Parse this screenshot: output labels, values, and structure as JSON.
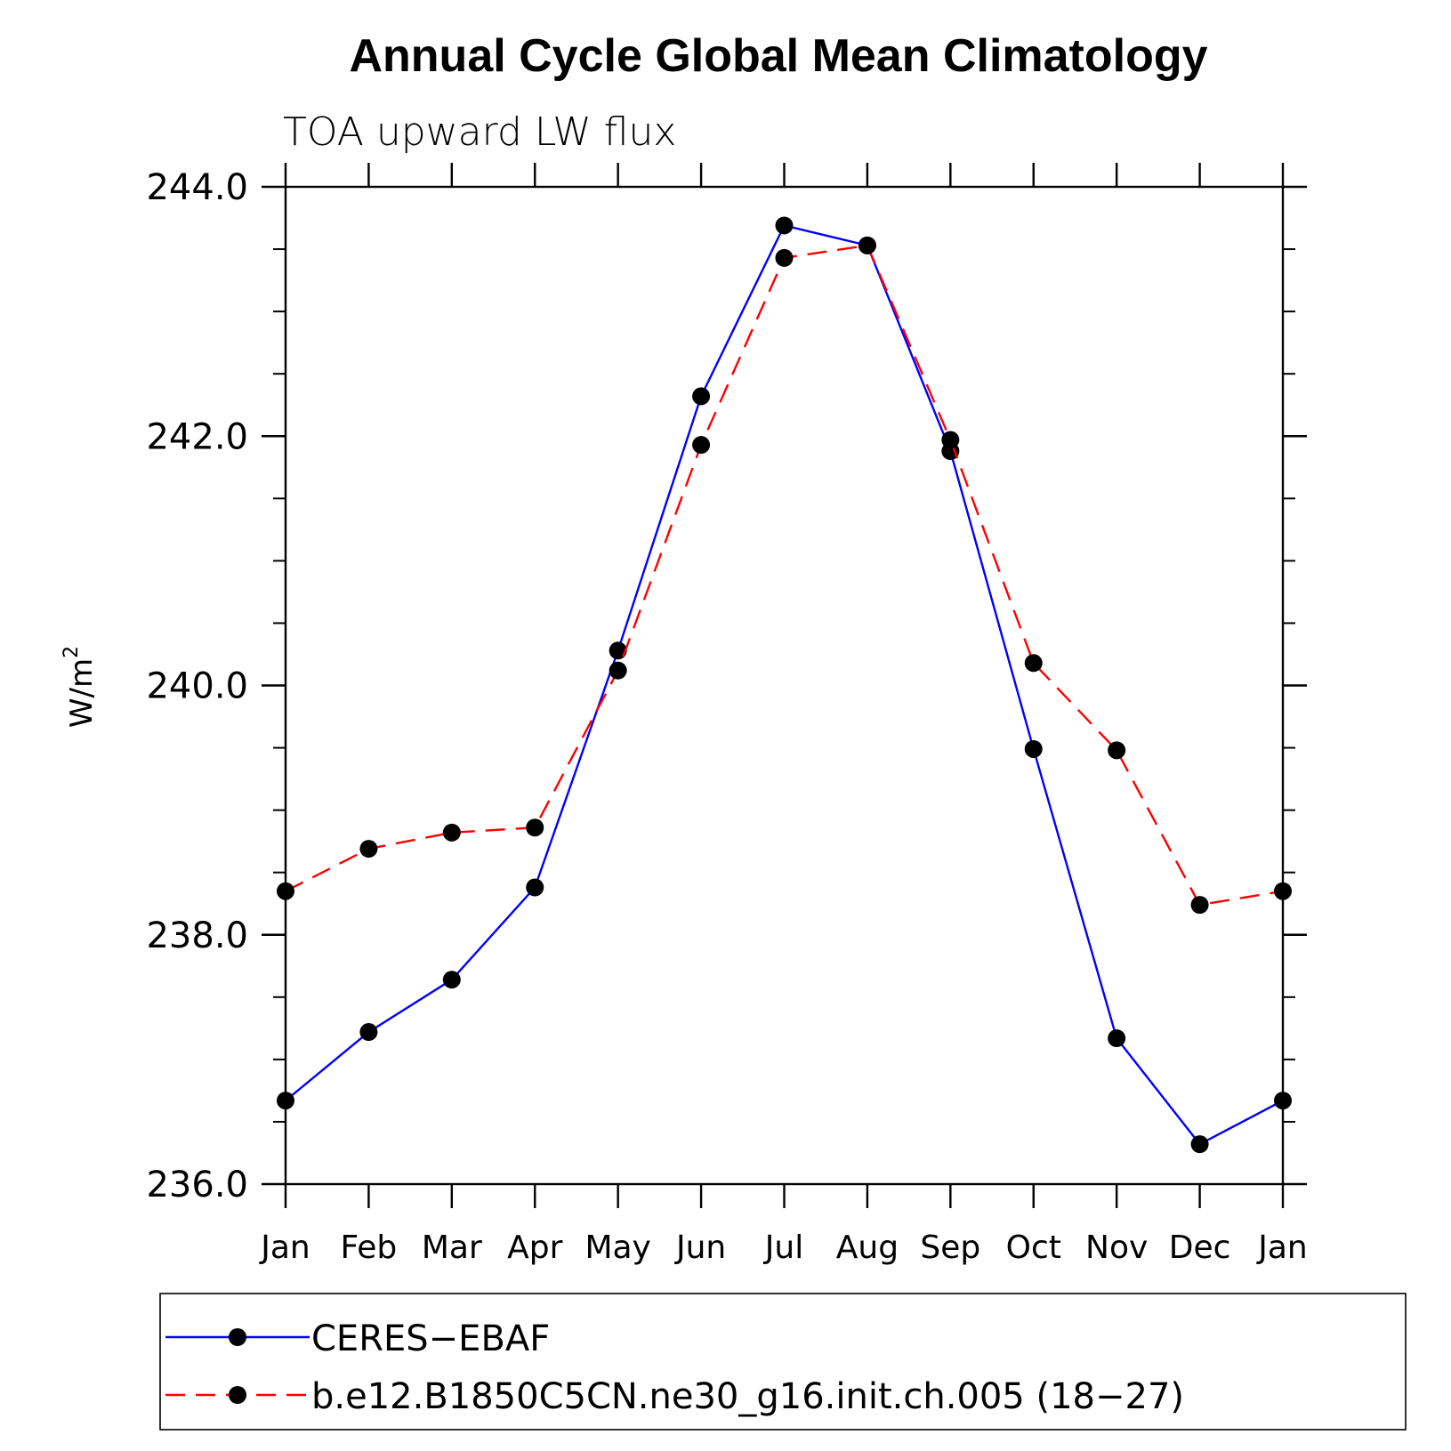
{
  "chart_data": {
    "type": "line",
    "title": "Annual Cycle Global Mean Climatology",
    "subtitle": "TOA upward LW flux",
    "ylabel": "W/m",
    "ylabel_sup": "2",
    "xlabel": "",
    "categories": [
      "Jan",
      "Feb",
      "Mar",
      "Apr",
      "May",
      "Jun",
      "Jul",
      "Aug",
      "Sep",
      "Oct",
      "Nov",
      "Dec",
      "Jan"
    ],
    "ylim": [
      236.0,
      244.0
    ],
    "yticks": [
      "236.0",
      "238.0",
      "240.0",
      "242.0",
      "244.0"
    ],
    "series": [
      {
        "name": "CERES−EBAF",
        "color": "#0000ff",
        "dash": "solid",
        "values": [
          236.67,
          237.22,
          237.64,
          238.38,
          240.28,
          242.32,
          243.69,
          243.53,
          241.88,
          239.49,
          237.17,
          236.32,
          236.67
        ]
      },
      {
        "name": "b.e12.B1850C5CN.ne30_g16.init.ch.005 (18−27)",
        "color": "#ff0000",
        "dash": "dashed",
        "values": [
          238.35,
          238.69,
          238.82,
          238.86,
          240.12,
          241.93,
          243.43,
          243.53,
          241.97,
          240.18,
          239.48,
          238.24,
          238.35
        ]
      }
    ],
    "grid": false,
    "legend_position": "bottom"
  }
}
